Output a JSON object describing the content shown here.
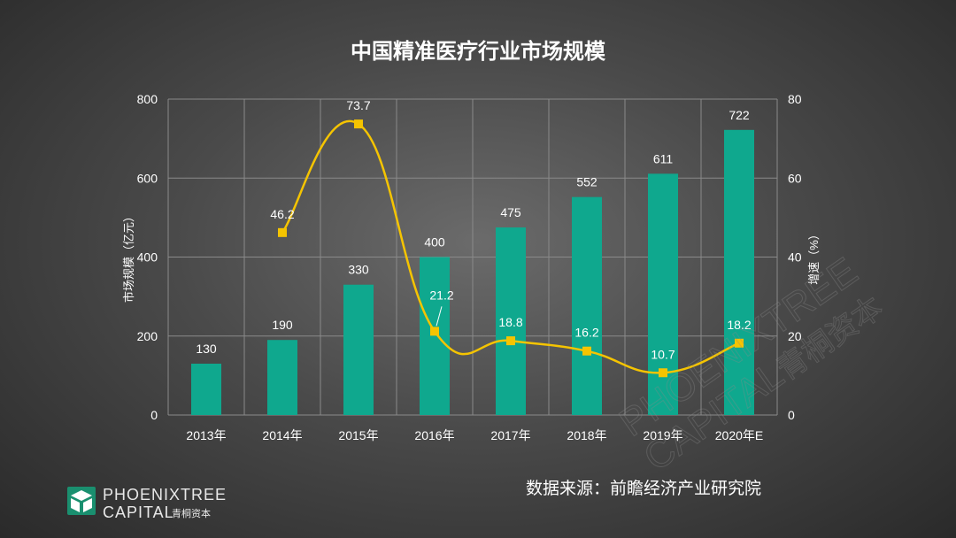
{
  "chart_data": {
    "type": "bar",
    "title": "中国精准医疗行业市场规模",
    "categories": [
      "2013年",
      "2014年",
      "2015年",
      "2016年",
      "2017年",
      "2018年",
      "2019年",
      "2020年E"
    ],
    "series": [
      {
        "name": "市场规模",
        "type": "bar",
        "axis": "left",
        "values": [
          130,
          190,
          330,
          400,
          475,
          552,
          611,
          722
        ],
        "labels": [
          "130",
          "190",
          "330",
          "400",
          "475",
          "552",
          "611",
          "722"
        ]
      },
      {
        "name": "增速",
        "type": "line",
        "axis": "right",
        "values": [
          null,
          46.2,
          73.7,
          21.2,
          18.8,
          16.2,
          10.7,
          18.2
        ],
        "labels": [
          "",
          "46.2",
          "73.7",
          "21.2",
          "18.8",
          "16.2",
          "10.7",
          "18.2"
        ]
      }
    ],
    "ylabel": "市场规模（亿元）",
    "y2label": "增速（%）",
    "ylim": [
      0,
      800
    ],
    "y2lim": [
      0,
      80
    ],
    "yticks": [
      "0",
      "200",
      "400",
      "600",
      "800"
    ],
    "y2ticks": [
      "0",
      "20",
      "40",
      "60",
      "80"
    ],
    "grid": true
  },
  "source_text": "数据来源：前瞻经济产业研究院",
  "logo": {
    "line1": "PHOENIXTREE",
    "line2": "CAPITAL",
    "cn": "青桐资本"
  },
  "watermark": {
    "line1": "PHOENIXTREE",
    "line2": "CAPITAL",
    "cn": "青桐资本"
  },
  "colors": {
    "bar": "#0fa88e",
    "line": "#f5c400",
    "marker": "#f5c400",
    "grid": "#8a8a8a",
    "logo": "#1a8f6f"
  }
}
